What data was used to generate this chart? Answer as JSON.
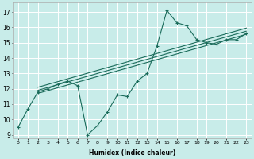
{
  "title": "",
  "xlabel": "Humidex (Indice chaleur)",
  "bg_color": "#c8ece9",
  "grid_color": "#ffffff",
  "line_color": "#1a6b5a",
  "xlim": [
    -0.5,
    23.5
  ],
  "ylim": [
    8.8,
    17.6
  ],
  "line1_x": [
    0,
    1,
    2,
    3,
    4,
    5,
    6,
    7,
    8,
    9,
    10,
    11,
    12,
    13,
    14,
    15,
    16,
    17,
    18,
    19,
    20,
    21,
    22,
    23
  ],
  "line1_y": [
    9.5,
    10.7,
    11.8,
    12.0,
    12.3,
    12.5,
    12.2,
    9.0,
    9.6,
    10.5,
    11.6,
    11.5,
    12.5,
    13.0,
    14.8,
    17.1,
    16.3,
    16.1,
    15.2,
    15.0,
    14.9,
    15.2,
    15.2,
    15.6
  ],
  "line3_x": [
    2,
    23
  ],
  "line3_y": [
    11.7,
    15.55
  ],
  "line4_x": [
    2,
    23
  ],
  "line4_y": [
    11.9,
    15.75
  ],
  "line5_x": [
    2,
    23
  ],
  "line5_y": [
    12.1,
    15.95
  ],
  "xticks": [
    0,
    1,
    2,
    3,
    4,
    5,
    6,
    7,
    8,
    9,
    10,
    11,
    12,
    13,
    14,
    15,
    16,
    17,
    18,
    19,
    20,
    21,
    22,
    23
  ],
  "yticks": [
    9,
    10,
    11,
    12,
    13,
    14,
    15,
    16,
    17
  ]
}
